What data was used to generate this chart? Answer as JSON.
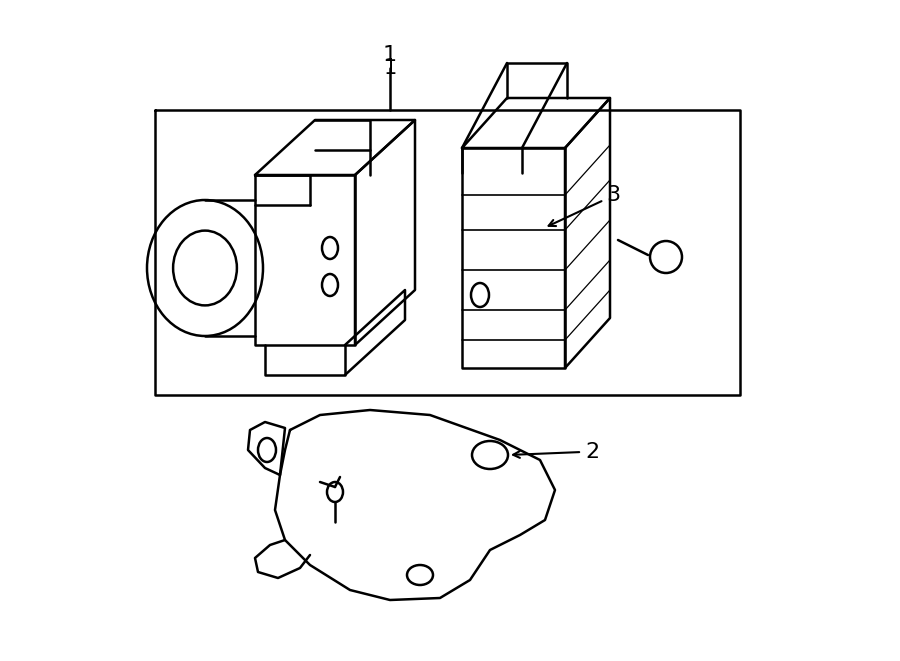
{
  "bg_color": "#ffffff",
  "line_color": "#000000",
  "line_width": 1.8,
  "fig_width": 9.0,
  "fig_height": 6.61,
  "label_1": "1",
  "label_2": "2",
  "label_3": "3"
}
